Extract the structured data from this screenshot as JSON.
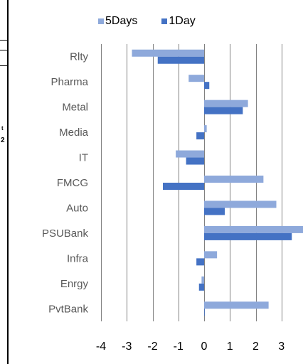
{
  "chart_data": {
    "type": "bar",
    "orientation": "horizontal",
    "categories": [
      "Rlty",
      "Pharma",
      "Metal",
      "Media",
      "IT",
      "FMCG",
      "Auto",
      "PSUBank",
      "Infra",
      "Enrgy",
      "PvtBank"
    ],
    "series": [
      {
        "name": "5Days",
        "color": "#8EA9DB",
        "values": [
          -2.8,
          -0.6,
          1.7,
          0.1,
          -1.1,
          2.3,
          2.8,
          3.9,
          0.5,
          -0.1,
          2.5
        ]
      },
      {
        "name": "1Day",
        "color": "#4472C4",
        "values": [
          -1.8,
          0.2,
          1.5,
          -0.3,
          -0.7,
          -1.6,
          0.8,
          3.4,
          -0.3,
          -0.2,
          0.0
        ]
      }
    ],
    "xlim": [
      -4,
      5
    ],
    "xticks": [
      "-4",
      "-3",
      "-2",
      "-1",
      "0",
      "1",
      "2",
      "3",
      "4",
      "5"
    ],
    "grid": true,
    "legend": "top"
  },
  "fragments": {
    "side_text_1": "t",
    "side_text_2": "2"
  }
}
